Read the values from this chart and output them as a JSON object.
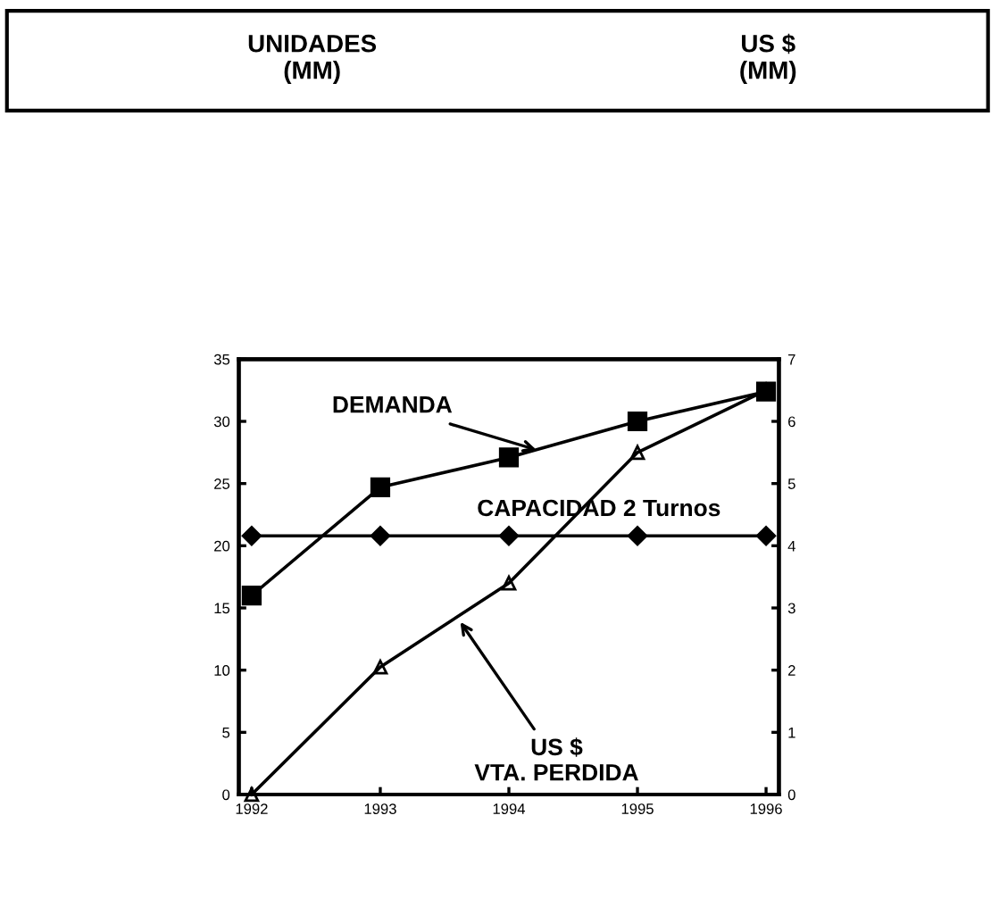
{
  "chart_data": {
    "type": "line",
    "x": [
      1992,
      1993,
      1994,
      1995,
      1996
    ],
    "series": [
      {
        "color": "#000000",
        "marker": "square",
        "values": [
          16,
          24.7,
          27.1,
          30,
          32.4
        ]
      },
      {
        "color": "#000000",
        "marker": "diamond",
        "values": [
          20.8,
          20.8,
          20.8,
          20.8,
          20.8
        ]
      },
      {
        "color": "#000000",
        "marker": "triangle",
        "axis": "y2",
        "values": [
          0,
          2.05,
          3.4,
          5.5,
          6.5
        ]
      }
    ],
    "annotations": [
      {
        "text": "DEMANDA",
        "x": 1994.25,
        "y": 27.6
      },
      {
        "text": "CAPACIDAD 2 Turnos",
        "x": 1994.7,
        "y": 20.8
      },
      {
        "text": "US $\nVTA. PERDIDA",
        "x": 1993.6,
        "y": 14.2
      },
      "UNIDADES\n(MM)",
      "US $\n(MM)"
    ],
    "xlim": [
      1991.9,
      1996.1
    ],
    "xticks": [
      1992,
      1993,
      1994,
      1995,
      1996
    ],
    "ylim": [
      0,
      35
    ],
    "yticks": [
      0,
      5,
      10,
      15,
      20,
      25,
      30,
      35
    ],
    "y2lim": [
      0,
      7
    ],
    "y2ticks": [
      0,
      1,
      2,
      3,
      4,
      5,
      6,
      7
    ],
    "grid": false,
    "legend": false
  }
}
